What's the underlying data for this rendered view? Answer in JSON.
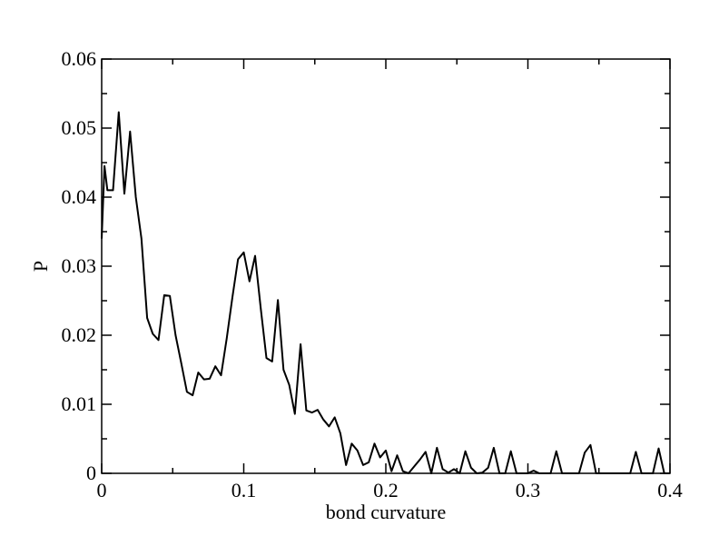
{
  "chart_data": {
    "type": "line",
    "title": "",
    "xlabel": "bond curvature",
    "ylabel": "P",
    "xlim": [
      0,
      0.4
    ],
    "ylim": [
      0,
      0.06
    ],
    "x_ticks": [
      "0",
      "0.1",
      "0.2",
      "0.3",
      "0.4"
    ],
    "y_ticks": [
      "0",
      "0.01",
      "0.02",
      "0.03",
      "0.04",
      "0.05",
      "0.06"
    ],
    "grid": false,
    "legend": "none",
    "line_color": "#000000",
    "series": [
      {
        "x": [
          0.0,
          0.002,
          0.004,
          0.008,
          0.012,
          0.016,
          0.02,
          0.024,
          0.028,
          0.032,
          0.036,
          0.04,
          0.044,
          0.048,
          0.052,
          0.056,
          0.06,
          0.064,
          0.068,
          0.072,
          0.076,
          0.08,
          0.084,
          0.088,
          0.092,
          0.096,
          0.1,
          0.104,
          0.108,
          0.112,
          0.116,
          0.12,
          0.124,
          0.128,
          0.132,
          0.136,
          0.14,
          0.144,
          0.148,
          0.152,
          0.156,
          0.16,
          0.164,
          0.168,
          0.172,
          0.176,
          0.18,
          0.184,
          0.188,
          0.192,
          0.196,
          0.2,
          0.204,
          0.208,
          0.212,
          0.216,
          0.22,
          0.224,
          0.228,
          0.232,
          0.236,
          0.24,
          0.244,
          0.248,
          0.252,
          0.256,
          0.26,
          0.264,
          0.268,
          0.272,
          0.276,
          0.28,
          0.284,
          0.288,
          0.292,
          0.296,
          0.3,
          0.304,
          0.308,
          0.312,
          0.316,
          0.32,
          0.324,
          0.328,
          0.332,
          0.336,
          0.34,
          0.344,
          0.348,
          0.352,
          0.356,
          0.36,
          0.364,
          0.368,
          0.372,
          0.376,
          0.38,
          0.384,
          0.388,
          0.392,
          0.396,
          0.4
        ],
        "y": [
          0.034,
          0.0445,
          0.041,
          0.041,
          0.0523,
          0.0405,
          0.0495,
          0.04,
          0.034,
          0.0225,
          0.0202,
          0.0193,
          0.0258,
          0.0257,
          0.02,
          0.016,
          0.0118,
          0.0113,
          0.0146,
          0.0136,
          0.0137,
          0.0155,
          0.0142,
          0.0195,
          0.0255,
          0.031,
          0.032,
          0.0278,
          0.0315,
          0.0238,
          0.0167,
          0.0162,
          0.0251,
          0.015,
          0.0128,
          0.0086,
          0.0187,
          0.0091,
          0.0088,
          0.0092,
          0.0078,
          0.0068,
          0.0081,
          0.0058,
          0.0012,
          0.0043,
          0.0033,
          0.0012,
          0.0016,
          0.0043,
          0.0023,
          0.0033,
          0.0003,
          0.0026,
          0.0003,
          0.0,
          0.001,
          0.002,
          0.0031,
          0.0,
          0.0037,
          0.0006,
          0.0001,
          0.0006,
          0.0,
          0.0032,
          0.0008,
          0.0,
          0.0001,
          0.0008,
          0.0037,
          0.0,
          0.0,
          0.0032,
          0.0,
          0.0,
          0.0,
          0.0004,
          0.0,
          0.0,
          0.0,
          0.0032,
          0.0,
          0.0,
          0.0,
          0.0,
          0.003,
          0.0041,
          0.0,
          0.0,
          0.0,
          0.0,
          0.0,
          0.0,
          0.0,
          0.0031,
          0.0,
          0.0,
          0.0,
          0.0036,
          0.0,
          0.0
        ]
      }
    ]
  }
}
